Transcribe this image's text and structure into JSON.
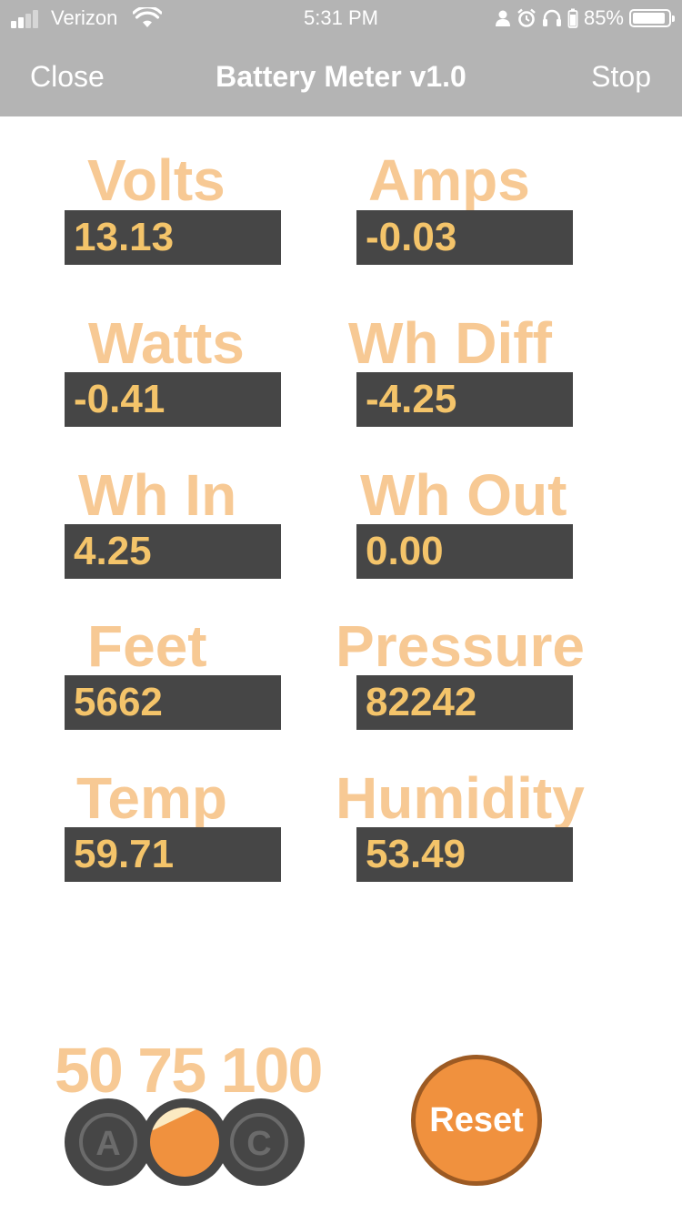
{
  "status_bar": {
    "carrier": "Verizon",
    "time": "5:31 PM",
    "battery_percent": "85%",
    "signal_bars_active": 2,
    "signal_bars_total": 4,
    "battery_level": 0.85
  },
  "nav": {
    "close_label": "Close",
    "title": "Battery Meter v1.0",
    "stop_label": "Stop"
  },
  "meters": [
    {
      "label": "Volts",
      "value": "13.13"
    },
    {
      "label": "Amps",
      "value": "-0.03"
    },
    {
      "label": "Watts",
      "value": "-0.41"
    },
    {
      "label": "Wh Diff",
      "value": "-4.25"
    },
    {
      "label": "Wh In",
      "value": "4.25"
    },
    {
      "label": "Wh Out",
      "value": "0.00"
    },
    {
      "label": "Feet",
      "value": "5662"
    },
    {
      "label": "Pressure",
      "value": "82242"
    },
    {
      "label": "Temp",
      "value": "59.71"
    },
    {
      "label": "Humidity",
      "value": "53.49"
    }
  ],
  "scale": {
    "labels": "50 75 100"
  },
  "selector": {
    "left_label": "A",
    "right_label": "C",
    "selected": "middle"
  },
  "reset": {
    "label": "Reset"
  },
  "colors": {
    "nav_bg": "#b4b4b4",
    "label_color": "#f7c994",
    "value_bg": "#464646",
    "value_text": "#f4c46a",
    "accent_orange": "#f0913e",
    "reset_border": "#9c5a23"
  }
}
